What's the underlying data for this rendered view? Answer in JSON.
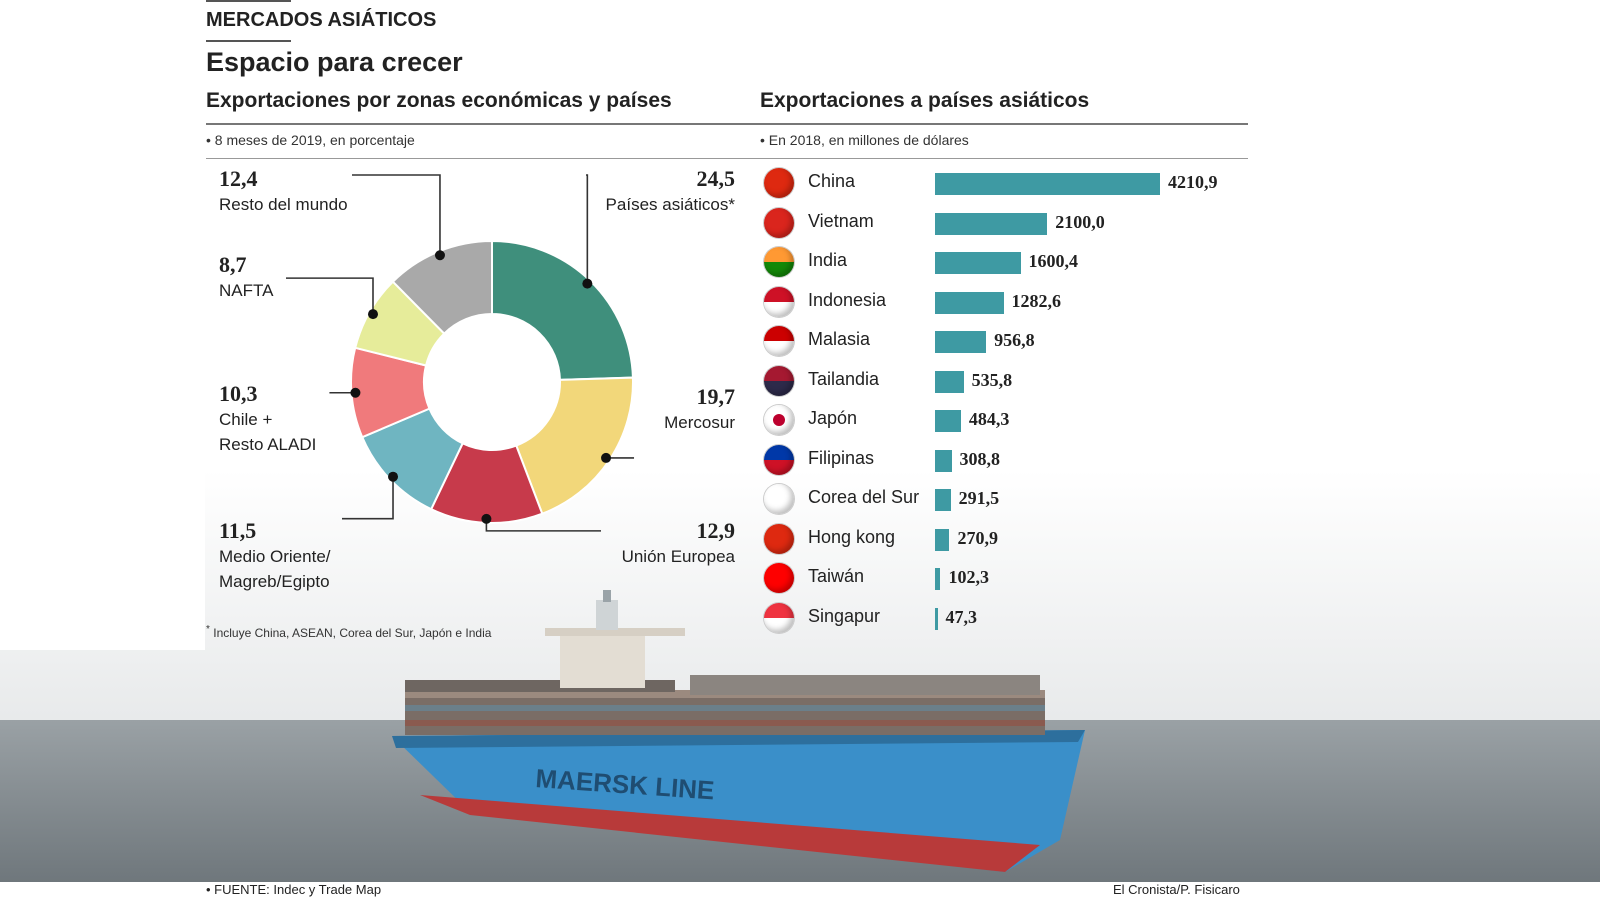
{
  "header": {
    "section_label": "MERCADOS ASIÁTICOS",
    "title": "Espacio para crecer"
  },
  "left_panel": {
    "heading": "Exportaciones por zonas económicas y países",
    "note": "• 8 meses de 2019, en porcentaje",
    "footnote_mark": "*",
    "footnote": "Incluye China, ASEAN, Corea del Sur, Japón e India"
  },
  "right_panel": {
    "heading": "Exportaciones a países asiáticos",
    "note": "• En 2018, en millones de dólares"
  },
  "chart_data": [
    {
      "type": "pie",
      "donut": true,
      "units": "%",
      "slices": [
        {
          "label": "Países asiáticos*",
          "value": 24.5,
          "value_text": "24,5",
          "color": "#3f8f7c"
        },
        {
          "label": "Mercosur",
          "value": 19.7,
          "value_text": "19,7",
          "color": "#f2d77a"
        },
        {
          "label": "Unión Europea",
          "value": 12.9,
          "value_text": "12,9",
          "color": "#c73a4b"
        },
        {
          "label": "Medio Oriente/ Magreb/Egipto",
          "label_lines": [
            "Medio Oriente/",
            "Magreb/Egipto"
          ],
          "value": 11.5,
          "value_text": "11,5",
          "color": "#6fb5c1"
        },
        {
          "label": "Chile + Resto ALADI",
          "label_lines": [
            "Chile +",
            "Resto ALADI"
          ],
          "value": 10.3,
          "value_text": "10,3",
          "color": "#f07a7c"
        },
        {
          "label": "NAFTA",
          "value": 8.7,
          "value_text": "8,7",
          "color": "#e6ec9a"
        },
        {
          "label": "Resto del mundo",
          "value": 12.4,
          "value_text": "12,4",
          "color": "#a9a9a9"
        }
      ]
    },
    {
      "type": "bar",
      "orientation": "horizontal",
      "units": "millones de dólares",
      "bar_color": "#3e9aa3",
      "categories": [
        "China",
        "Vietnam",
        "India",
        "Indonesia",
        "Malasia",
        "Tailandia",
        "Japón",
        "Filipinas",
        "Corea del Sur",
        "Hong kong",
        "Taiwán",
        "Singapur"
      ],
      "values": [
        4210.9,
        2100.0,
        1600.4,
        1282.6,
        956.8,
        535.8,
        484.3,
        308.8,
        291.5,
        270.9,
        102.3,
        47.3
      ],
      "value_labels": [
        "4210,9",
        "2100,0",
        "1600,4",
        "1282,6",
        "956,8",
        "535,8",
        "484,3",
        "308,8",
        "291,5",
        "270,9",
        "102,3",
        "47,3"
      ],
      "flag_icons": [
        "china-flag-icon",
        "vietnam-flag-icon",
        "india-flag-icon",
        "indonesia-flag-icon",
        "malaysia-flag-icon",
        "thailand-flag-icon",
        "japan-flag-icon",
        "philippines-flag-icon",
        "south-korea-flag-icon",
        "hong-kong-flag-icon",
        "taiwan-flag-icon",
        "singapore-flag-icon"
      ]
    }
  ],
  "photo": {
    "hull_text": "MAERSK LINE",
    "colors": {
      "hull_blue": "#3a8fc9",
      "hull_red": "#b83a3a",
      "sea": "#7c858b",
      "sky": "#eceeee"
    }
  },
  "footer": {
    "source": "• FUENTE: Indec y Trade Map",
    "credit": "El Cronista/P. Fisicaro"
  }
}
